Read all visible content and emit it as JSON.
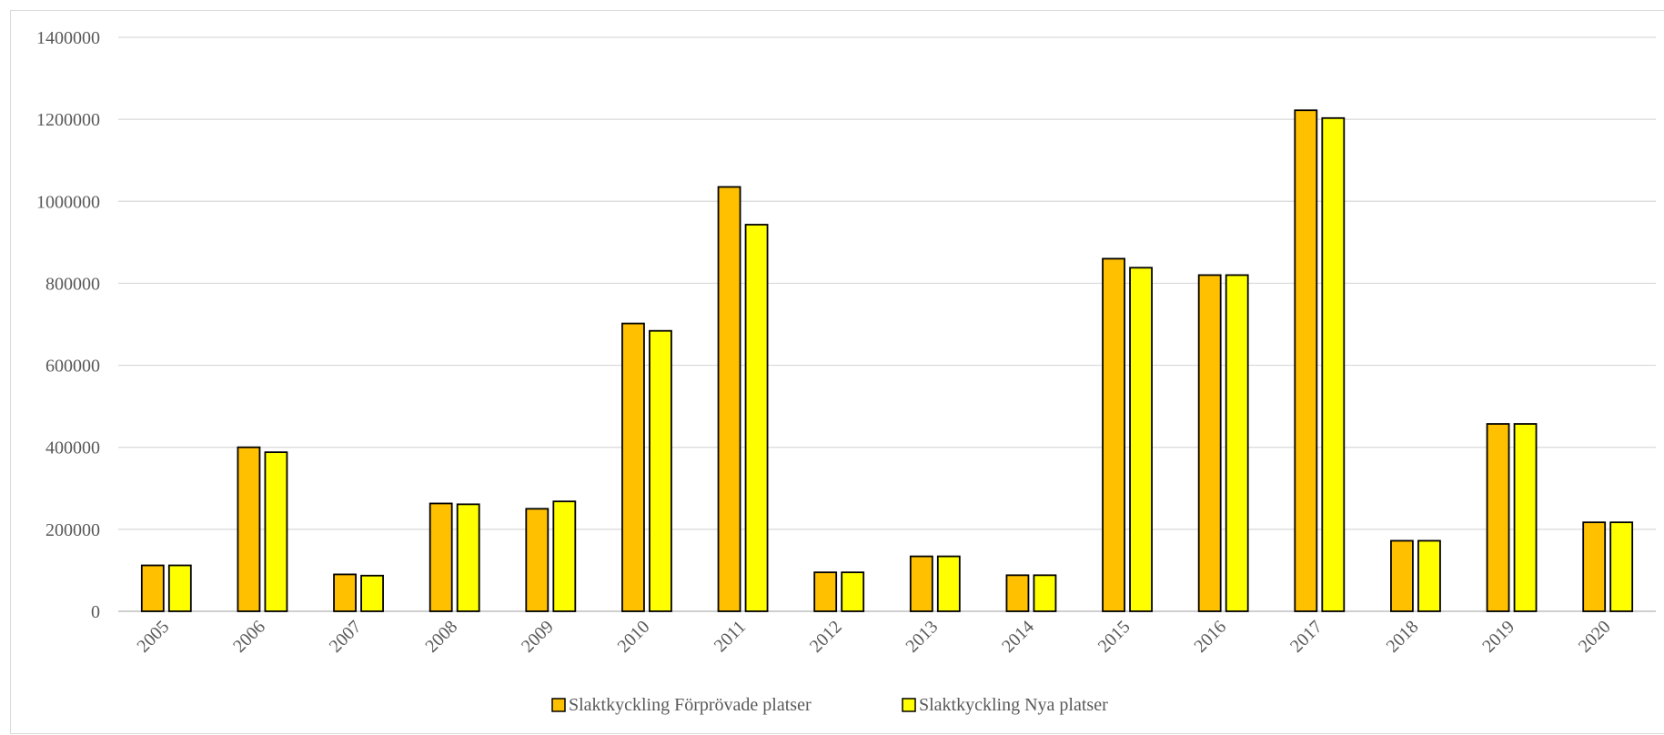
{
  "chart_data": {
    "type": "bar",
    "categories": [
      "2005",
      "2006",
      "2007",
      "2008",
      "2009",
      "2010",
      "2011",
      "2012",
      "2013",
      "2014",
      "2015",
      "2016",
      "2017",
      "2018",
      "2019",
      "2020"
    ],
    "series": [
      {
        "name": "Slaktkyckling Förprövade platser",
        "color": "#ffc000",
        "values": [
          112000,
          400000,
          90000,
          263000,
          250000,
          702000,
          1035000,
          95000,
          134000,
          88000,
          860000,
          820000,
          1222000,
          172000,
          457000,
          217000
        ]
      },
      {
        "name": "Slaktkyckling Nya platser",
        "color": "#ffff00",
        "values": [
          112000,
          388000,
          87000,
          261000,
          268000,
          684000,
          943000,
          95000,
          134000,
          88000,
          838000,
          820000,
          1203000,
          172000,
          457000,
          217000
        ]
      }
    ],
    "ylim": [
      0,
      1400000
    ],
    "yticks": [
      "0",
      "200000",
      "400000",
      "600000",
      "800000",
      "1000000",
      "1200000",
      "1400000"
    ],
    "grid": true,
    "legend_position": "bottom"
  }
}
